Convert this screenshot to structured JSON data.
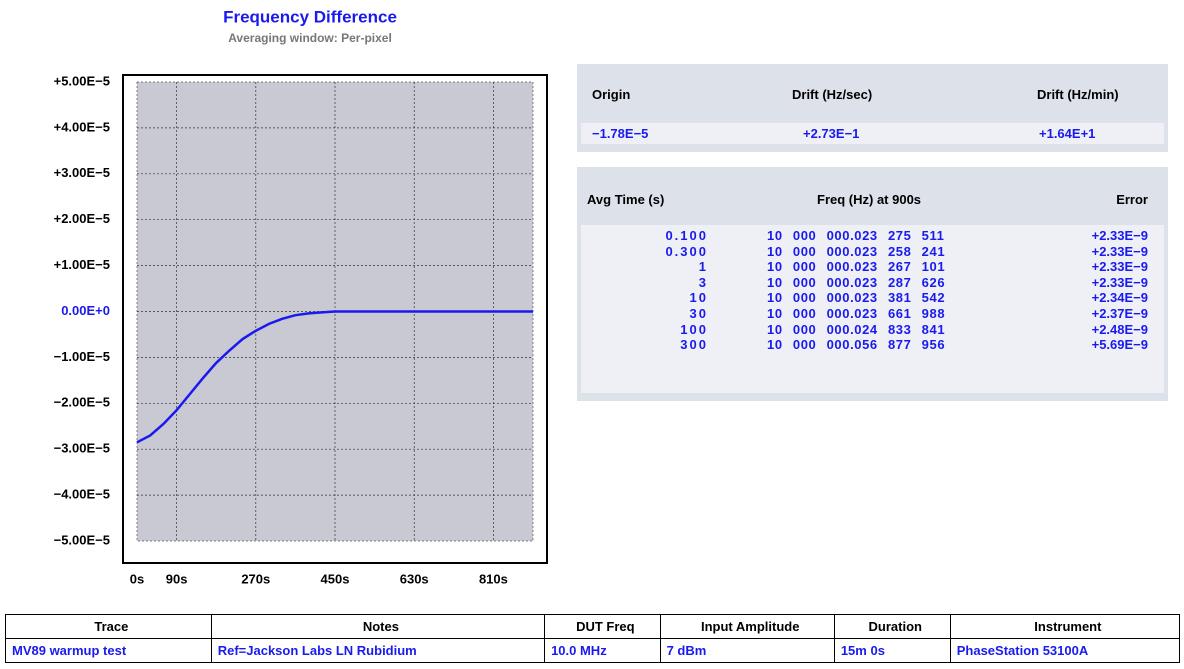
{
  "chart_data": {
    "type": "line",
    "title": "Frequency Difference",
    "subtitle": "Averaging window: Per-pixel",
    "x": [
      0,
      30,
      60,
      90,
      120,
      150,
      180,
      210,
      240,
      270,
      300,
      330,
      360,
      390,
      420,
      450,
      900
    ],
    "values": [
      -2.85e-05,
      -2.7e-05,
      -2.45e-05,
      -2.15e-05,
      -1.8e-05,
      -1.45e-05,
      -1.12e-05,
      -8.5e-06,
      -6e-06,
      -4.2e-06,
      -2.7e-06,
      -1.6e-06,
      -8e-07,
      -4e-07,
      -2e-07,
      0,
      0
    ],
    "color": "#1a1aee",
    "xlim": [
      0,
      900
    ],
    "xticks": [
      {
        "value": 0,
        "label": "0s"
      },
      {
        "value": 90,
        "label": "90s"
      },
      {
        "value": 270,
        "label": "270s"
      },
      {
        "value": 450,
        "label": "450s"
      },
      {
        "value": 630,
        "label": "630s"
      },
      {
        "value": 810,
        "label": "810s"
      }
    ],
    "ylim": [
      -5e-05,
      5e-05
    ],
    "yticks": [
      {
        "value": 5e-05,
        "label": "+5.00E−5"
      },
      {
        "value": 4e-05,
        "label": "+4.00E−5"
      },
      {
        "value": 3e-05,
        "label": "+3.00E−5"
      },
      {
        "value": 2e-05,
        "label": "+2.00E−5"
      },
      {
        "value": 1e-05,
        "label": "+1.00E−5"
      },
      {
        "value": 0,
        "label": "0.00E+0"
      },
      {
        "value": -1e-05,
        "label": "−1.00E−5"
      },
      {
        "value": -2e-05,
        "label": "−2.00E−5"
      },
      {
        "value": -3e-05,
        "label": "−3.00E−5"
      },
      {
        "value": -4e-05,
        "label": "−4.00E−5"
      },
      {
        "value": -5e-05,
        "label": "−5.00E−5"
      }
    ],
    "grid": true
  },
  "drift_table": {
    "headers": [
      "Origin",
      "Drift (Hz/sec)",
      "Drift (Hz/min)"
    ],
    "row": [
      "−1.78E−5",
      "+2.73E−1",
      "+1.64E+1"
    ]
  },
  "avg_table": {
    "headers": [
      "Avg Time (s)",
      "Freq (Hz) at 900s",
      "Error"
    ],
    "rows": [
      [
        "0.100",
        "10 000 000.023 275 511",
        "+2.33E−9"
      ],
      [
        "0.300",
        "10 000 000.023 258 241",
        "+2.33E−9"
      ],
      [
        "1",
        "10 000 000.023 267 101",
        "+2.33E−9"
      ],
      [
        "3",
        "10 000 000.023 287 626",
        "+2.33E−9"
      ],
      [
        "10",
        "10 000 000.023 381 542",
        "+2.34E−9"
      ],
      [
        "30",
        "10 000 000.023 661 988",
        "+2.37E−9"
      ],
      [
        "100",
        "10 000 000.024 833 841",
        "+2.48E−9"
      ],
      [
        "300",
        "10 000 000.056 877 956",
        "+5.69E−9"
      ]
    ]
  },
  "trace_table": {
    "headers": [
      "Trace",
      "Notes",
      "DUT Freq",
      "Input Amplitude",
      "Duration",
      "Instrument"
    ],
    "row": [
      "MV89 warmup test",
      "Ref=Jackson Labs LN Rubidium",
      "10.0 MHz",
      "7 dBm",
      "15m 0s",
      "PhaseStation 53100A"
    ]
  }
}
